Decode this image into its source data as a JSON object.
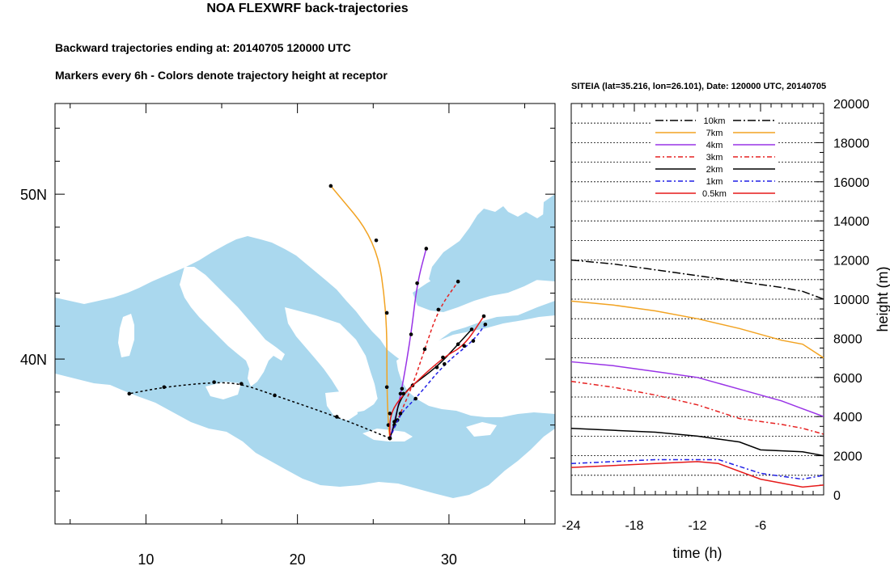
{
  "title": "NOA FLEXWRF back-trajectories",
  "subtitle1": "Backward trajectories ending at: 20140705  120000 UTC",
  "subtitle2": "Markers every 6h - Colors denote trajectory height at receptor",
  "colors": {
    "sea": "#aad8ee",
    "land": "#ffffff",
    "10km": "#000000",
    "7km": "#f2a322",
    "4km": "#9933e6",
    "3km": "#e62222",
    "2km": "#000000",
    "1km": "#1f1fe6",
    "0.5km": "#e61a1a"
  },
  "chart_data": [
    {
      "type": "map",
      "lon_range": [
        4,
        37
      ],
      "lat_range": [
        30,
        55.5
      ],
      "x_ticks": [
        "10",
        "20",
        "30"
      ],
      "y_ticks": [
        "40N",
        "50N"
      ],
      "receptor": {
        "lat": 35.216,
        "lon": 26.101
      },
      "trajectories": [
        {
          "height": "7km",
          "points": [
            [
              26.1,
              35.2
            ],
            [
              26.0,
              36.0
            ],
            [
              25.9,
              38.3
            ],
            [
              25.9,
              42.8
            ],
            [
              25.2,
              47.2
            ],
            [
              22.2,
              50.5
            ]
          ]
        },
        {
          "height": "4km",
          "points": [
            [
              26.1,
              35.2
            ],
            [
              26.4,
              36.2
            ],
            [
              26.9,
              38.2
            ],
            [
              27.5,
              41.5
            ],
            [
              27.9,
              44.6
            ],
            [
              28.5,
              46.7
            ]
          ]
        },
        {
          "height": "3km",
          "points": [
            [
              26.1,
              35.2
            ],
            [
              26.6,
              36.3
            ],
            [
              27.6,
              38.4
            ],
            [
              28.4,
              40.6
            ],
            [
              29.3,
              43.0
            ],
            [
              30.6,
              44.7
            ]
          ]
        },
        {
          "height": "2km",
          "points": [
            [
              26.1,
              35.2
            ],
            [
              26.4,
              36.0
            ],
            [
              26.8,
              37.9
            ],
            [
              29.2,
              39.5
            ],
            [
              30.6,
              40.9
            ],
            [
              31.5,
              41.8
            ]
          ]
        },
        {
          "height": "1km",
          "points": [
            [
              26.1,
              35.2
            ],
            [
              26.8,
              36.7
            ],
            [
              27.8,
              37.6
            ],
            [
              29.7,
              39.7
            ],
            [
              31.6,
              41.1
            ],
            [
              32.4,
              42.1
            ]
          ]
        },
        {
          "height": "0.5km",
          "points": [
            [
              26.1,
              35.2
            ],
            [
              26.1,
              36.7
            ],
            [
              27.0,
              37.9
            ],
            [
              29.6,
              40.1
            ],
            [
              31.0,
              40.8
            ],
            [
              32.3,
              42.6
            ]
          ]
        },
        {
          "height": "10km",
          "points": [
            [
              26.1,
              35.2
            ],
            [
              22.6,
              36.5
            ],
            [
              18.5,
              37.8
            ],
            [
              16.3,
              38.5
            ],
            [
              14.5,
              38.6
            ],
            [
              11.2,
              38.3
            ],
            [
              8.9,
              37.9
            ]
          ]
        }
      ]
    },
    {
      "type": "line",
      "title": "SITEIA (lat=35.216,  lon=26.101), Date: 120000 UTC, 20140705",
      "xlabel": "time (h)",
      "ylabel": "height (m)",
      "xlim": [
        -24,
        0
      ],
      "ylim": [
        0,
        20000
      ],
      "x_ticks": [
        -24,
        -18,
        -12,
        -6
      ],
      "y_ticks": [
        0,
        2000,
        4000,
        6000,
        8000,
        10000,
        12000,
        14000,
        16000,
        18000,
        20000
      ],
      "legend": [
        "10km",
        "7km",
        "4km",
        "3km",
        "2km",
        "1km",
        "0.5km"
      ],
      "series": [
        {
          "name": "10km",
          "x": [
            -24,
            -20,
            -16,
            -12,
            -8,
            -4,
            -2,
            0
          ],
          "values": [
            12000,
            11800,
            11500,
            11200,
            10900,
            10600,
            10400,
            10000
          ]
        },
        {
          "name": "7km",
          "x": [
            -24,
            -20,
            -16,
            -12,
            -8,
            -4,
            -2,
            0
          ],
          "values": [
            9900,
            9700,
            9400,
            9000,
            8500,
            7900,
            7700,
            7000
          ]
        },
        {
          "name": "4km",
          "x": [
            -24,
            -20,
            -16,
            -12,
            -8,
            -4,
            -2,
            0
          ],
          "values": [
            6800,
            6600,
            6300,
            6000,
            5400,
            4800,
            4400,
            4000
          ]
        },
        {
          "name": "3km",
          "x": [
            -24,
            -20,
            -16,
            -12,
            -8,
            -4,
            -2,
            0
          ],
          "values": [
            5800,
            5500,
            5100,
            4600,
            3900,
            3600,
            3400,
            3100
          ]
        },
        {
          "name": "2km",
          "x": [
            -24,
            -20,
            -16,
            -12,
            -8,
            -6,
            -2,
            0
          ],
          "values": [
            3400,
            3300,
            3200,
            3000,
            2700,
            2300,
            2200,
            2000
          ]
        },
        {
          "name": "1km",
          "x": [
            -24,
            -20,
            -16,
            -12,
            -10,
            -6,
            -2,
            0
          ],
          "values": [
            1600,
            1700,
            1800,
            1800,
            1800,
            1100,
            800,
            1000
          ]
        },
        {
          "name": "0.5km",
          "x": [
            -24,
            -20,
            -16,
            -12,
            -10,
            -6,
            -2,
            0
          ],
          "values": [
            1400,
            1500,
            1600,
            1700,
            1600,
            800,
            400,
            500
          ]
        }
      ]
    }
  ]
}
